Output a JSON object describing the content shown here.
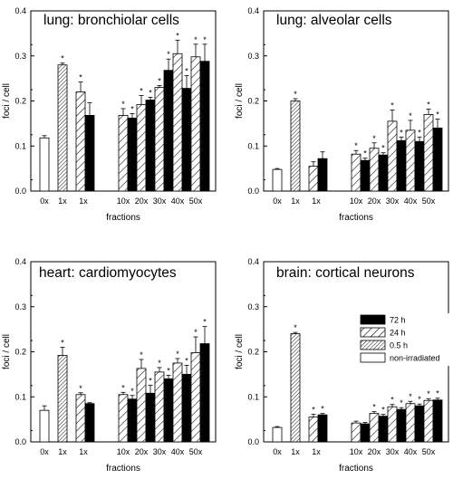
{
  "figure": {
    "xlabel": "fractions",
    "ylabel": "foci / cell"
  },
  "legend": {
    "items": [
      {
        "label": "72 h",
        "fill": "solid"
      },
      {
        "label": "24 h",
        "fill": "hatch-wide"
      },
      {
        "label": "0.5 h",
        "fill": "hatch-dense"
      },
      {
        "label": "non-irradiated",
        "fill": "open"
      }
    ]
  },
  "colors": {
    "solid": "#000000",
    "outline": "#000000",
    "background": "#ffffff"
  },
  "chart_data": [
    {
      "type": "bar",
      "title": "lung: bronchiolar cells",
      "xlabel": "fractions",
      "ylabel": "foci / cell",
      "ylim": [
        0,
        0.4
      ],
      "yticks": [
        0.0,
        0.1,
        0.2,
        0.3,
        0.4
      ],
      "tick_labels": [
        "0x",
        "1x",
        "1x",
        "10x",
        "20x",
        "30x",
        "40x",
        "50x"
      ],
      "bars": [
        {
          "x": "0x",
          "series": "non-irradiated",
          "value": 0.118,
          "err": 0.005,
          "star": false
        },
        {
          "x": "1x",
          "series": "0.5 h",
          "value": 0.28,
          "err": 0.004,
          "star": true
        },
        {
          "x": "1x",
          "series": "24 h",
          "value": 0.22,
          "err": 0.022,
          "star": true
        },
        {
          "x": "1x",
          "series": "72 h",
          "value": 0.168,
          "err": 0.028,
          "star": false
        },
        {
          "x": "10x",
          "series": "24 h",
          "value": 0.168,
          "err": 0.015,
          "star": true
        },
        {
          "x": "10x",
          "series": "72 h",
          "value": 0.162,
          "err": 0.01,
          "star": true
        },
        {
          "x": "20x",
          "series": "24 h",
          "value": 0.192,
          "err": 0.02,
          "star": true
        },
        {
          "x": "20x",
          "series": "72 h",
          "value": 0.202,
          "err": 0.006,
          "star": true
        },
        {
          "x": "30x",
          "series": "24 h",
          "value": 0.23,
          "err": 0.004,
          "star": true
        },
        {
          "x": "30x",
          "series": "72 h",
          "value": 0.268,
          "err": 0.025,
          "star": true
        },
        {
          "x": "40x",
          "series": "24 h",
          "value": 0.305,
          "err": 0.03,
          "star": true
        },
        {
          "x": "40x",
          "series": "72 h",
          "value": 0.228,
          "err": 0.028,
          "star": true
        },
        {
          "x": "50x",
          "series": "24 h",
          "value": 0.298,
          "err": 0.028,
          "star": true
        },
        {
          "x": "50x",
          "series": "72 h",
          "value": 0.288,
          "err": 0.038,
          "star": true
        }
      ]
    },
    {
      "type": "bar",
      "title": "lung: alveolar cells",
      "xlabel": "fractions",
      "ylabel": "foci / cell",
      "ylim": [
        0,
        0.4
      ],
      "yticks": [
        0.0,
        0.1,
        0.2,
        0.3,
        0.4
      ],
      "tick_labels": [
        "0x",
        "1x",
        "1x",
        "10x",
        "20x",
        "30x",
        "40x",
        "50x"
      ],
      "bars": [
        {
          "x": "0x",
          "series": "non-irradiated",
          "value": 0.048,
          "err": 0.002,
          "star": false
        },
        {
          "x": "1x",
          "series": "0.5 h",
          "value": 0.2,
          "err": 0.005,
          "star": true
        },
        {
          "x": "1x",
          "series": "24 h",
          "value": 0.055,
          "err": 0.01,
          "star": false
        },
        {
          "x": "1x",
          "series": "72 h",
          "value": 0.072,
          "err": 0.015,
          "star": false
        },
        {
          "x": "10x",
          "series": "24 h",
          "value": 0.082,
          "err": 0.008,
          "star": true
        },
        {
          "x": "10x",
          "series": "72 h",
          "value": 0.068,
          "err": 0.005,
          "star": true
        },
        {
          "x": "20x",
          "series": "24 h",
          "value": 0.095,
          "err": 0.012,
          "star": true
        },
        {
          "x": "20x",
          "series": "72 h",
          "value": 0.08,
          "err": 0.005,
          "star": true
        },
        {
          "x": "30x",
          "series": "24 h",
          "value": 0.155,
          "err": 0.025,
          "star": true
        },
        {
          "x": "30x",
          "series": "72 h",
          "value": 0.112,
          "err": 0.008,
          "star": true
        },
        {
          "x": "40x",
          "series": "24 h",
          "value": 0.135,
          "err": 0.022,
          "star": true
        },
        {
          "x": "40x",
          "series": "72 h",
          "value": 0.11,
          "err": 0.01,
          "star": true
        },
        {
          "x": "50x",
          "series": "24 h",
          "value": 0.17,
          "err": 0.012,
          "star": true
        },
        {
          "x": "50x",
          "series": "72 h",
          "value": 0.14,
          "err": 0.02,
          "star": true
        }
      ]
    },
    {
      "type": "bar",
      "title": "heart: cardiomyocytes",
      "xlabel": "fractions",
      "ylabel": "foci / cell",
      "ylim": [
        0,
        0.4
      ],
      "yticks": [
        0.0,
        0.1,
        0.2,
        0.3,
        0.4
      ],
      "tick_labels": [
        "0x",
        "1x",
        "1x",
        "10x",
        "20x",
        "30x",
        "40x",
        "50x"
      ],
      "bars": [
        {
          "x": "0x",
          "series": "non-irradiated",
          "value": 0.07,
          "err": 0.01,
          "star": false
        },
        {
          "x": "1x",
          "series": "0.5 h",
          "value": 0.192,
          "err": 0.018,
          "star": true
        },
        {
          "x": "1x",
          "series": "24 h",
          "value": 0.105,
          "err": 0.004,
          "star": true
        },
        {
          "x": "1x",
          "series": "72 h",
          "value": 0.085,
          "err": 0.002,
          "star": false
        },
        {
          "x": "10x",
          "series": "24 h",
          "value": 0.105,
          "err": 0.005,
          "star": true
        },
        {
          "x": "10x",
          "series": "72 h",
          "value": 0.095,
          "err": 0.008,
          "star": true
        },
        {
          "x": "20x",
          "series": "24 h",
          "value": 0.163,
          "err": 0.02,
          "star": true
        },
        {
          "x": "20x",
          "series": "72 h",
          "value": 0.108,
          "err": 0.018,
          "star": true
        },
        {
          "x": "30x",
          "series": "24 h",
          "value": 0.155,
          "err": 0.01,
          "star": true
        },
        {
          "x": "30x",
          "series": "72 h",
          "value": 0.14,
          "err": 0.008,
          "star": true
        },
        {
          "x": "40x",
          "series": "24 h",
          "value": 0.175,
          "err": 0.01,
          "star": true
        },
        {
          "x": "40x",
          "series": "72 h",
          "value": 0.15,
          "err": 0.02,
          "star": true
        },
        {
          "x": "50x",
          "series": "24 h",
          "value": 0.198,
          "err": 0.035,
          "star": true
        },
        {
          "x": "50x",
          "series": "72 h",
          "value": 0.218,
          "err": 0.038,
          "star": true
        }
      ]
    },
    {
      "type": "bar",
      "title": "brain: cortical neurons",
      "xlabel": "fractions",
      "ylabel": "foci / cell",
      "ylim": [
        0,
        0.4
      ],
      "yticks": [
        0.0,
        0.1,
        0.2,
        0.3,
        0.4
      ],
      "tick_labels": [
        "0x",
        "1x",
        "1x",
        "10x",
        "20x",
        "30x",
        "40x",
        "50x"
      ],
      "bars": [
        {
          "x": "0x",
          "series": "non-irradiated",
          "value": 0.032,
          "err": 0.002,
          "star": false
        },
        {
          "x": "1x",
          "series": "0.5 h",
          "value": 0.24,
          "err": 0.003,
          "star": true
        },
        {
          "x": "1x",
          "series": "24 h",
          "value": 0.055,
          "err": 0.006,
          "star": true
        },
        {
          "x": "1x",
          "series": "72 h",
          "value": 0.06,
          "err": 0.003,
          "star": true
        },
        {
          "x": "10x",
          "series": "24 h",
          "value": 0.042,
          "err": 0.004,
          "star": false
        },
        {
          "x": "10x",
          "series": "72 h",
          "value": 0.04,
          "err": 0.003,
          "star": false
        },
        {
          "x": "20x",
          "series": "24 h",
          "value": 0.063,
          "err": 0.004,
          "star": true
        },
        {
          "x": "20x",
          "series": "72 h",
          "value": 0.057,
          "err": 0.004,
          "star": true
        },
        {
          "x": "30x",
          "series": "24 h",
          "value": 0.078,
          "err": 0.005,
          "star": true
        },
        {
          "x": "30x",
          "series": "72 h",
          "value": 0.072,
          "err": 0.004,
          "star": true
        },
        {
          "x": "40x",
          "series": "24 h",
          "value": 0.085,
          "err": 0.005,
          "star": true
        },
        {
          "x": "40x",
          "series": "72 h",
          "value": 0.08,
          "err": 0.004,
          "star": true
        },
        {
          "x": "50x",
          "series": "24 h",
          "value": 0.092,
          "err": 0.004,
          "star": true
        },
        {
          "x": "50x",
          "series": "72 h",
          "value": 0.093,
          "err": 0.004,
          "star": true
        }
      ]
    }
  ]
}
